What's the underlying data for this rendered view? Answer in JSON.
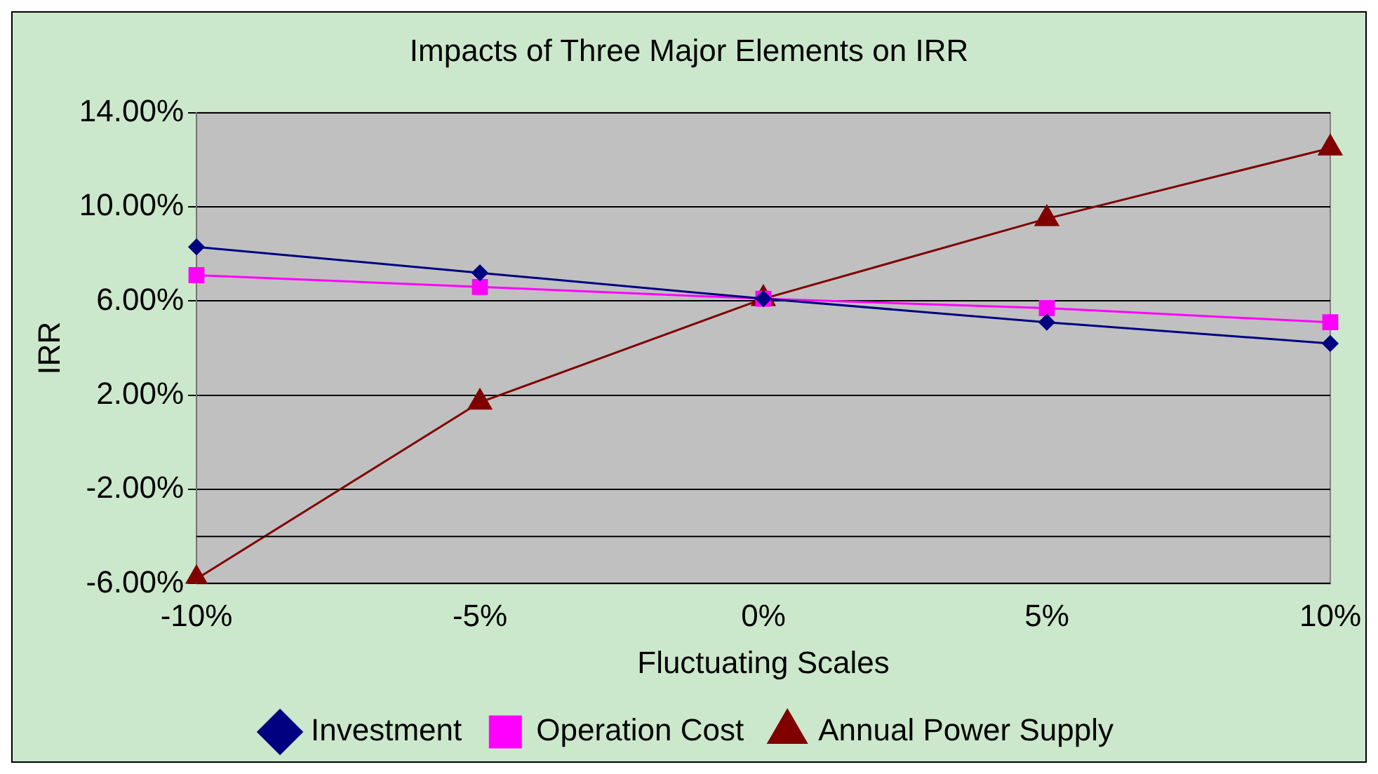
{
  "chart_data": {
    "type": "line",
    "title": "Impacts of Three Major Elements on IRR",
    "xlabel": "Fluctuating Scales",
    "ylabel": "IRR",
    "categories": [
      "-10%",
      "-5%",
      "0%",
      "5%",
      "10%"
    ],
    "series": [
      {
        "name": "Investment",
        "color": "#000080",
        "marker": "diamond",
        "values": [
          8.3,
          7.2,
          6.1,
          5.1,
          4.2
        ]
      },
      {
        "name": "Operation Cost",
        "color": "#ff00ff",
        "marker": "square",
        "values": [
          7.1,
          6.6,
          6.1,
          5.7,
          5.1
        ]
      },
      {
        "name": "Annual Power Supply",
        "color": "#800000",
        "marker": "triangle",
        "values": [
          -5.8,
          1.7,
          6.1,
          9.5,
          12.5
        ]
      }
    ],
    "ylim": [
      -6,
      14
    ],
    "yticks": [
      {
        "value": -6,
        "label": "-6.00%"
      },
      {
        "value": -2,
        "label": "-2.00%"
      },
      {
        "value": 2,
        "label": "2.00%"
      },
      {
        "value": 6,
        "label": "6.00%"
      },
      {
        "value": 10,
        "label": "10.00%"
      },
      {
        "value": 14,
        "label": "14.00%"
      }
    ],
    "ref_lines": [
      {
        "axis": "y",
        "value": -4,
        "color": "#000000"
      }
    ],
    "grid": "y",
    "legend": "bottom",
    "line_style": "solid"
  }
}
